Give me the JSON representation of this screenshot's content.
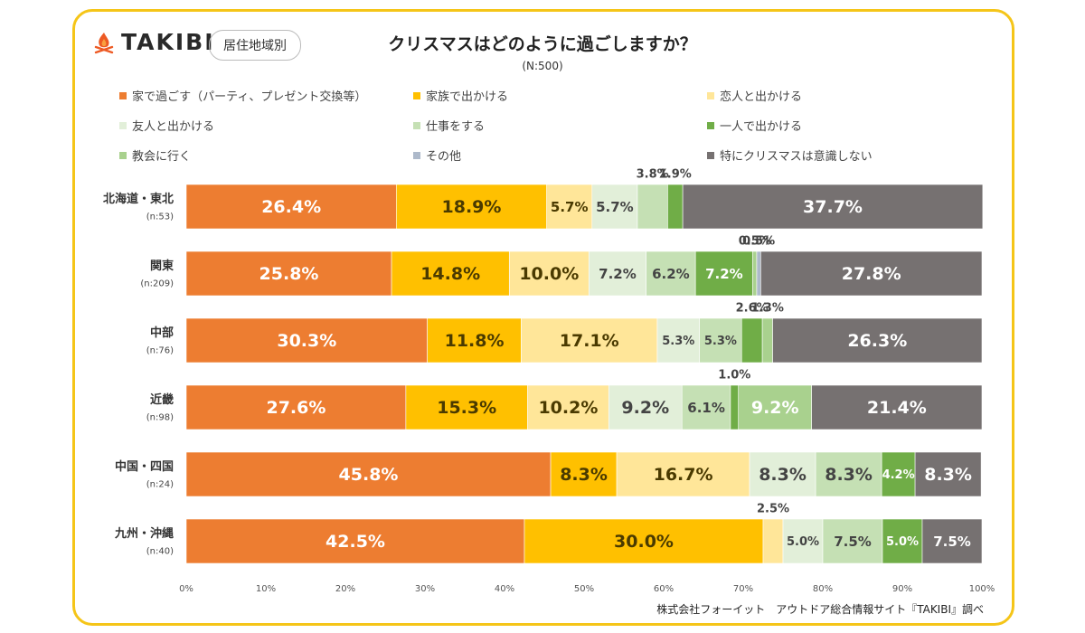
{
  "brand": {
    "logo_text": "TAKIBI",
    "region_badge": "居住地域別"
  },
  "chart_data": {
    "type": "bar",
    "orientation": "horizontal-stacked-100",
    "title": "クリスマスはどのように過ごしますか？",
    "subtitle": "(N:500)",
    "legend_placement": "top",
    "grid": false,
    "xlim": [
      0,
      100
    ],
    "x_ticks": [
      "0%",
      "10%",
      "20%",
      "30%",
      "40%",
      "50%",
      "60%",
      "70%",
      "80%",
      "90%",
      "100%"
    ],
    "categories": [
      {
        "name": "北海道・東北",
        "n": "(n:53)"
      },
      {
        "name": "関東",
        "n": "(n:209)"
      },
      {
        "name": "中部",
        "n": "(n:76)"
      },
      {
        "name": "近畿",
        "n": "(n:98)"
      },
      {
        "name": "中国・四国",
        "n": "(n:24)"
      },
      {
        "name": "九州・沖縄",
        "n": "(n:40)"
      }
    ],
    "series": [
      {
        "name": "家で過ごす（パーティ、プレゼント交換等）",
        "color": "#ed7d31",
        "values": [
          26.4,
          25.8,
          30.3,
          27.6,
          45.8,
          42.5
        ]
      },
      {
        "name": "家族で出かける",
        "color": "#ffc000",
        "values": [
          18.9,
          14.8,
          11.8,
          15.3,
          8.3,
          30.0
        ]
      },
      {
        "name": "恋人と出かける",
        "color": "#ffe699",
        "values": [
          5.7,
          10.0,
          17.1,
          10.2,
          16.7,
          2.5
        ]
      },
      {
        "name": "友人と出かける",
        "color": "#e2efd9",
        "values": [
          5.7,
          7.2,
          5.3,
          9.2,
          8.3,
          5.0
        ]
      },
      {
        "name": "仕事をする",
        "color": "#c5e0b4",
        "values": [
          3.8,
          6.2,
          5.3,
          6.1,
          8.3,
          7.5
        ]
      },
      {
        "name": "一人で出かける",
        "color": "#70ad47",
        "values": [
          1.9,
          7.2,
          2.6,
          1.0,
          4.2,
          5.0
        ]
      },
      {
        "name": "教会に行く",
        "color": "#a9d18e",
        "values": [
          0,
          0.5,
          1.3,
          9.2,
          0,
          0
        ]
      },
      {
        "name": "その他",
        "color": "#adb9ca",
        "values": [
          0,
          0.5,
          0,
          0,
          0,
          0
        ]
      },
      {
        "name": "特にクリスマスは意識しない",
        "color": "#767171",
        "values": [
          37.7,
          27.8,
          26.3,
          21.4,
          8.3,
          7.5
        ]
      }
    ],
    "labels": [
      [
        "26.4%",
        "18.9%",
        "5.7%",
        "5.7%",
        "3.8%",
        "1.9%",
        "",
        "",
        "37.7%"
      ],
      [
        "25.8%",
        "14.8%",
        "10.0%",
        "7.2%",
        "6.2%",
        "7.2%",
        "0.5%",
        "0.5%",
        "27.8%"
      ],
      [
        "30.3%",
        "11.8%",
        "17.1%",
        "5.3%",
        "5.3%",
        "2.6%",
        "1.3%",
        "",
        "26.3%"
      ],
      [
        "27.6%",
        "15.3%",
        "10.2%",
        "9.2%",
        "6.1%",
        "1.0%",
        "9.2%",
        "",
        "21.4%"
      ],
      [
        "45.8%",
        "8.3%",
        "16.7%",
        "8.3%",
        "8.3%",
        "4.2%",
        "",
        "",
        "8.3%"
      ],
      [
        "42.5%",
        "30.0%",
        "2.5%",
        "5.0%",
        "7.5%",
        "5.0%",
        "",
        "",
        "7.5%"
      ]
    ]
  },
  "footer": "株式会社フォーイット　アウトドア総合情報サイト『TAKIBI』調べ"
}
